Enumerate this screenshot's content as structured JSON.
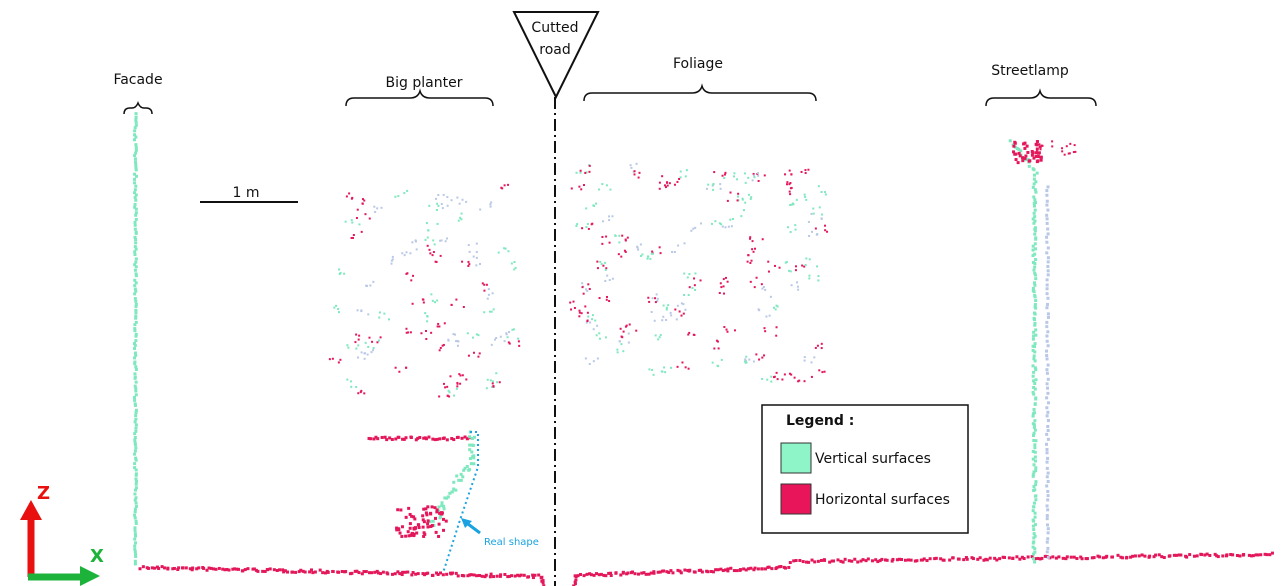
{
  "labels": {
    "facade": "Facade",
    "big_planter": "Big planter",
    "cutted_road": [
      "Cutted",
      "road"
    ],
    "foliage": "Foliage",
    "streetlamp": "Streetlamp"
  },
  "scale_bar": "1 m",
  "annotation": "Real shape",
  "axes": {
    "z": "Z",
    "x": "X"
  },
  "legend": {
    "title": "Legend :",
    "items": [
      "Vertical surfaces",
      "Horizontal surfaces"
    ]
  }
}
